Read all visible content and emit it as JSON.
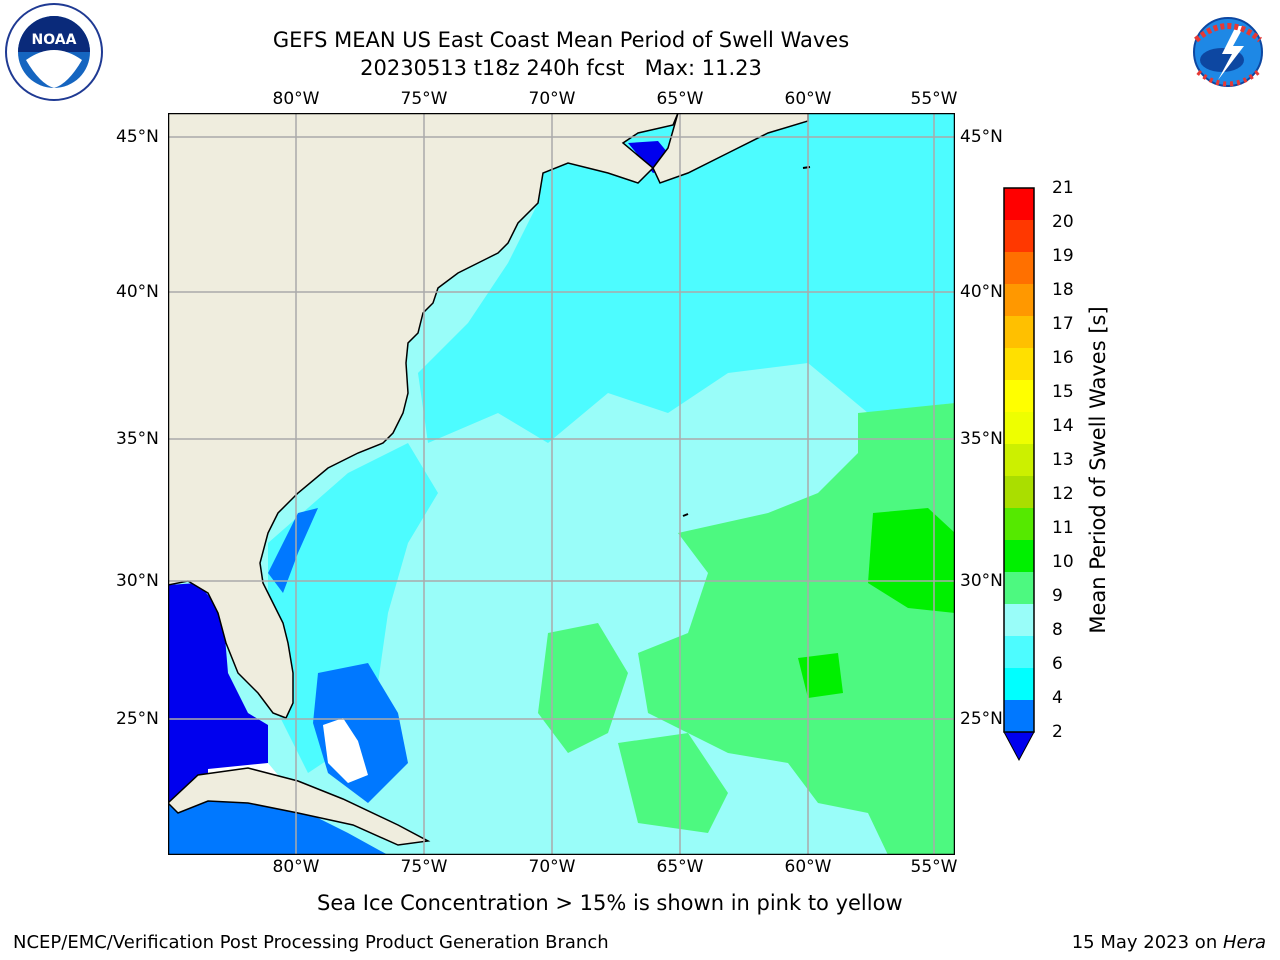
{
  "header": {
    "title_line1": "GEFS MEAN US East Coast Mean Period of Swell Waves",
    "title_line2": "20230513 t18z 240h fcst   Max: 11.23"
  },
  "logos": {
    "left": {
      "text": "NOAA",
      "icon": "noaa-logo-icon"
    },
    "right": {
      "text": "NATIONAL WEATHER SERVICE",
      "icon": "nws-logo-icon"
    }
  },
  "map": {
    "lon_labels": [
      "80°W",
      "75°W",
      "70°W",
      "65°W",
      "60°W",
      "55°W"
    ],
    "lat_labels": [
      "45°N",
      "40°N",
      "35°N",
      "30°N",
      "25°N"
    ],
    "land_color": "#efedde",
    "ocean_dominant_color": "#93fffb"
  },
  "colorbar": {
    "title": "Mean Period of Swell Waves [s]",
    "levels": [
      "2",
      "4",
      "6",
      "7",
      "8",
      "9",
      "10",
      "11",
      "12",
      "13",
      "14",
      "15",
      "16",
      "17",
      "18",
      "19",
      "20",
      "21"
    ],
    "tick_labels": [
      "2",
      "4",
      "6",
      "8",
      "9",
      "10",
      "11",
      "12",
      "13",
      "14",
      "15",
      "16",
      "17",
      "18",
      "19",
      "20",
      "21"
    ],
    "colors": [
      "#0000ee",
      "#0078ff",
      "#00ffff",
      "#4dfcff",
      "#99fdf9",
      "#4df980",
      "#00f000",
      "#55e900",
      "#aade00",
      "#ccf000",
      "#eeff00",
      "#ffff00",
      "#ffe000",
      "#ffc000",
      "#ff9800",
      "#ff7000",
      "#ff3800",
      "#ff0000"
    ],
    "extend_color": "#0000ee"
  },
  "footer": {
    "note": "Sea Ice Concentration > 15% is shown in pink to yellow",
    "left": "NCEP/EMC/Verification Post Processing Product Generation Branch",
    "date": "15 May 2023 on ",
    "machine": "Hera"
  }
}
